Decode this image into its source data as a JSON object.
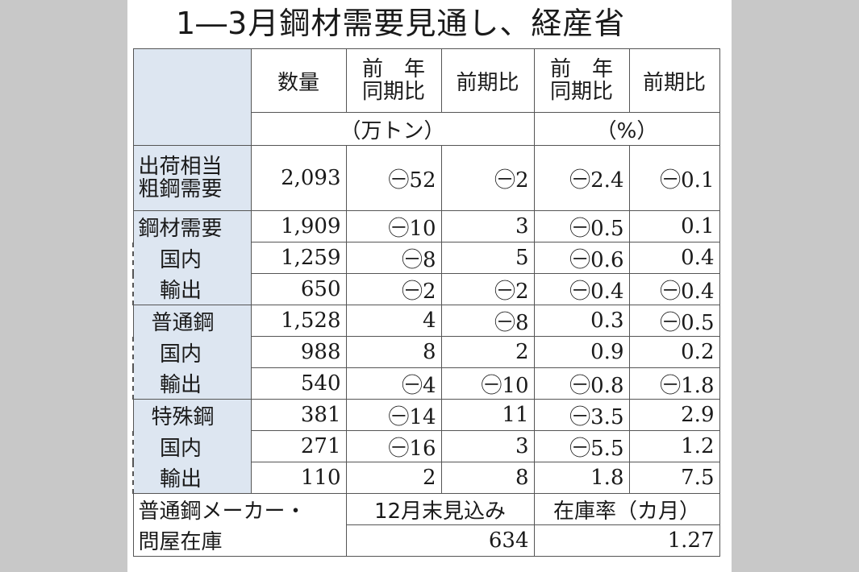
{
  "title": "1―3月鋼材需要見通し、経産省",
  "header": {
    "quantity": "数量",
    "yoy_top": "前　年",
    "yoy_bottom": "同期比",
    "qoq": "前期比",
    "pct_yoy_top": "前　年",
    "pct_yoy_bottom": "同期比",
    "pct_qoq": "前期比",
    "unit_tons": "（万トン）",
    "unit_pct": "（%）"
  },
  "rows": [
    {
      "label1": "出荷相当",
      "label2": "粗鋼需要",
      "qty": "2,093",
      "yoy": "㊀52",
      "qoq": "㊀2",
      "pyoy": "㊀2.4",
      "pqoq": "㊀0.1"
    },
    {
      "label": "鋼材需要",
      "qty": "1,909",
      "yoy": "㊀10",
      "qoq": "3",
      "pyoy": "㊀0.5",
      "pqoq": "0.1"
    },
    {
      "label": "国内",
      "qty": "1,259",
      "yoy": "㊀8",
      "qoq": "5",
      "pyoy": "㊀0.6",
      "pqoq": "0.4"
    },
    {
      "label": "輸出",
      "qty": "650",
      "yoy": "㊀2",
      "qoq": "㊀2",
      "pyoy": "㊀0.4",
      "pqoq": "㊀0.4"
    },
    {
      "label": "普通鋼",
      "qty": "1,528",
      "yoy": "4",
      "qoq": "㊀8",
      "pyoy": "0.3",
      "pqoq": "㊀0.5"
    },
    {
      "label": "国内",
      "qty": "988",
      "yoy": "8",
      "qoq": "2",
      "pyoy": "0.9",
      "pqoq": "0.2"
    },
    {
      "label": "輸出",
      "qty": "540",
      "yoy": "㊀4",
      "qoq": "㊀10",
      "pyoy": "㊀0.8",
      "pqoq": "㊀1.8"
    },
    {
      "label": "特殊鋼",
      "qty": "381",
      "yoy": "㊀14",
      "qoq": "11",
      "pyoy": "㊀3.5",
      "pqoq": "2.9"
    },
    {
      "label": "国内",
      "qty": "271",
      "yoy": "㊀16",
      "qoq": "3",
      "pyoy": "㊀5.5",
      "pqoq": "1.2"
    },
    {
      "label": "輸出",
      "qty": "110",
      "yoy": "2",
      "qoq": "8",
      "pyoy": "1.8",
      "pqoq": "7.5"
    }
  ],
  "footer": {
    "label1": "普通鋼メーカー・",
    "label2": "問屋在庫",
    "forecast_head": "12月末見込み",
    "ratio_head": "在庫率（カ月）",
    "forecast_value": "634",
    "ratio_value": "1.27"
  }
}
